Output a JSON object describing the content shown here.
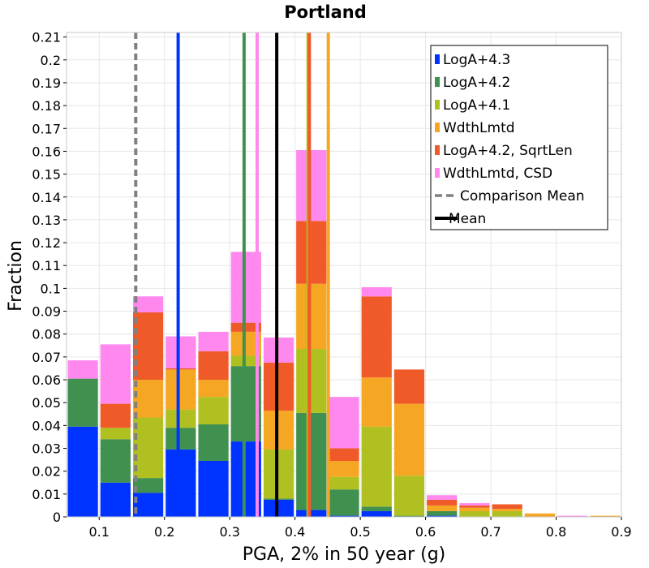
{
  "chart_data": {
    "type": "bar",
    "stacked": true,
    "title": "Portland",
    "xlabel": "PGA, 2% in 50 year (g)",
    "ylabel": "Fraction",
    "xlim": [
      0.05,
      0.9
    ],
    "ylim": [
      0,
      0.212
    ],
    "grid": true,
    "legend_position": "top-right",
    "x_ticks": [
      0.1,
      0.2,
      0.3,
      0.4,
      0.5,
      0.6,
      0.7,
      0.8,
      0.9
    ],
    "x_tick_labels": [
      "0.1",
      "0.2",
      "0.3",
      "0.4",
      "0.5",
      "0.6",
      "0.7",
      "0.8",
      "0.9"
    ],
    "y_ticks": [
      0,
      0.01,
      0.02,
      0.03,
      0.04,
      0.05,
      0.06,
      0.07,
      0.08,
      0.09,
      0.1,
      0.11,
      0.12,
      0.13,
      0.14,
      0.15,
      0.16,
      0.17,
      0.18,
      0.19,
      0.2,
      0.21
    ],
    "y_tick_labels": [
      "0",
      "0.01",
      "0.02",
      "0.03",
      "0.04",
      "0.05",
      "0.06",
      "0.07",
      "0.08",
      "0.09",
      "0.1",
      "0.11",
      "0.12",
      "0.13",
      "0.14",
      "0.15",
      "0.16",
      "0.17",
      "0.18",
      "0.19",
      "0.2",
      "0.21"
    ],
    "bin_centers": [
      0.075,
      0.125,
      0.175,
      0.225,
      0.275,
      0.325,
      0.375,
      0.425,
      0.475,
      0.525,
      0.575,
      0.625,
      0.675,
      0.725,
      0.775,
      0.825,
      0.875
    ],
    "bin_width": 0.05,
    "series": [
      {
        "name": "LogA+4.3",
        "color": "#0033ff",
        "values": [
          0.0395,
          0.015,
          0.0105,
          0.0295,
          0.0245,
          0.033,
          0.0075,
          0.003,
          0.0005,
          0.0025,
          0.0,
          0.0005,
          0.0,
          0.0,
          0.0,
          0.0,
          0.0
        ]
      },
      {
        "name": "LogA+4.2",
        "color": "#409050",
        "values": [
          0.021,
          0.019,
          0.0065,
          0.0095,
          0.016,
          0.033,
          0.0005,
          0.0425,
          0.0115,
          0.002,
          0.0005,
          0.002,
          0.0,
          0.0,
          0.0,
          0.0,
          0.0
        ]
      },
      {
        "name": "LogA+4.1",
        "color": "#b0c020",
        "values": [
          0.0,
          0.005,
          0.0265,
          0.008,
          0.012,
          0.0045,
          0.0215,
          0.028,
          0.0055,
          0.035,
          0.0175,
          0.0,
          0.0025,
          0.0025,
          0.0,
          0.0,
          0.0
        ]
      },
      {
        "name": "WdthLmtd",
        "color": "#f5a623",
        "values": [
          0.0,
          0.0,
          0.0165,
          0.0175,
          0.0075,
          0.0105,
          0.017,
          0.0285,
          0.007,
          0.0215,
          0.0315,
          0.0025,
          0.0015,
          0.001,
          0.0015,
          0.0,
          0.0005
        ]
      },
      {
        "name": "LogA+4.2, SqrtLen",
        "color": "#f05a28",
        "values": [
          0.0,
          0.0105,
          0.0295,
          0.0005,
          0.0125,
          0.004,
          0.021,
          0.0275,
          0.0055,
          0.0355,
          0.015,
          0.0025,
          0.001,
          0.002,
          0.0,
          0.0,
          0.0
        ]
      },
      {
        "name": "WdthLmtd, CSD",
        "color": "#ff88ee",
        "values": [
          0.008,
          0.026,
          0.007,
          0.014,
          0.0085,
          0.031,
          0.011,
          0.031,
          0.0225,
          0.004,
          0.0,
          0.002,
          0.001,
          0.0,
          0.0,
          0.0005,
          0.0
        ]
      }
    ],
    "mean_lines": [
      {
        "name": "LogA+4.3 mean",
        "x": 0.221,
        "color": "#0033ff",
        "style": "solid",
        "ymax": 0.212
      },
      {
        "name": "LogA+4.2 mean",
        "x": 0.322,
        "color": "#409050",
        "style": "solid",
        "ymax": 0.212
      },
      {
        "name": "WdthLmtd, CSD mean",
        "x": 0.342,
        "color": "#ff88ee",
        "style": "solid",
        "ymax": 0.212
      },
      {
        "name": "LogA+4.1 mean",
        "x": 0.42,
        "color": "#b0c020",
        "style": "solid",
        "ymax": 0.212
      },
      {
        "name": "LogA+4.2, SqrtLen mean",
        "x": 0.422,
        "color": "#f05a28",
        "style": "solid",
        "ymax": 0.212
      },
      {
        "name": "WdthLmtd mean",
        "x": 0.451,
        "color": "#f5a623",
        "style": "solid",
        "ymax": 0.212
      },
      {
        "name": "Mean",
        "x": 0.372,
        "color": "#000000",
        "style": "solid",
        "ymax": 0.212
      },
      {
        "name": "Comparison Mean",
        "x": 0.156,
        "color": "#808080",
        "style": "dashed",
        "ymax": 0.212
      }
    ],
    "legend": [
      {
        "label": "LogA+4.3",
        "color": "#0033ff",
        "kind": "box"
      },
      {
        "label": "LogA+4.2",
        "color": "#409050",
        "kind": "box"
      },
      {
        "label": "LogA+4.1",
        "color": "#b0c020",
        "kind": "box"
      },
      {
        "label": "WdthLmtd",
        "color": "#f5a623",
        "kind": "box"
      },
      {
        "label": "LogA+4.2, SqrtLen",
        "color": "#f05a28",
        "kind": "box"
      },
      {
        "label": "WdthLmtd, CSD",
        "color": "#ff88ee",
        "kind": "box"
      },
      {
        "label": "Comparison Mean",
        "color": "#808080",
        "kind": "dashed-line"
      },
      {
        "label": "Mean",
        "color": "#000000",
        "kind": "line"
      }
    ]
  }
}
